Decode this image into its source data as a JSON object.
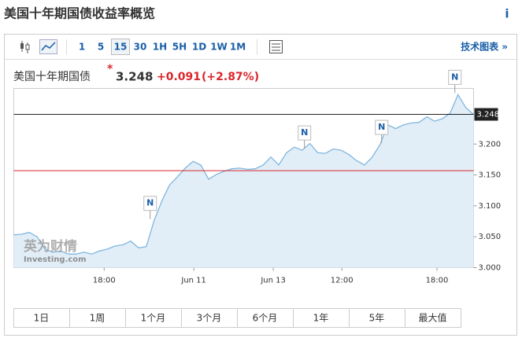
{
  "header": {
    "title": "美国十年期国债收益率概览",
    "info_icon": "i"
  },
  "toolbar": {
    "intervals": [
      "1",
      "5",
      "15",
      "30",
      "1H",
      "5H",
      "1D",
      "1W",
      "1M"
    ],
    "selected_index": 2,
    "link": "技术图表 »"
  },
  "quote": {
    "name": "美国十年期国债",
    "marker": "*",
    "price": "3.248",
    "change": "+0.091",
    "change_percent": "(+2.87%)"
  },
  "watermark": {
    "brand": "英为财情",
    "site": "Investing.com"
  },
  "chart_data": {
    "type": "area",
    "values": [
      3.053,
      3.054,
      3.057,
      3.05,
      3.03,
      3.025,
      3.027,
      3.022,
      3.022,
      3.025,
      3.022,
      3.027,
      3.03,
      3.035,
      3.037,
      3.043,
      3.032,
      3.034,
      3.076,
      3.108,
      3.134,
      3.147,
      3.161,
      3.172,
      3.166,
      3.143,
      3.151,
      3.156,
      3.16,
      3.161,
      3.159,
      3.16,
      3.166,
      3.179,
      3.166,
      3.186,
      3.195,
      3.19,
      3.201,
      3.186,
      3.185,
      3.192,
      3.19,
      3.183,
      3.173,
      3.166,
      3.179,
      3.199,
      3.231,
      3.225,
      3.231,
      3.234,
      3.235,
      3.244,
      3.237,
      3.241,
      3.25,
      3.28,
      3.259,
      3.248
    ],
    "color": "#7fb6de",
    "fill": "#e2eef7",
    "xlim": [
      0,
      59
    ],
    "xticks": [
      {
        "value": 11.6,
        "label": "18:00"
      },
      {
        "value": 23.1,
        "label": "Jun 11"
      },
      {
        "value": 33.3,
        "label": "Jun 13"
      },
      {
        "value": 42.1,
        "label": "12:00"
      },
      {
        "value": 54.3,
        "label": "18:00"
      }
    ],
    "ylim": [
      3.0,
      3.29
    ],
    "yticks": [
      {
        "value": 3.0,
        "label": "3.000"
      },
      {
        "value": 3.05,
        "label": "3.050"
      },
      {
        "value": 3.1,
        "label": "3.100"
      },
      {
        "value": 3.15,
        "label": "3.150"
      },
      {
        "value": 3.2,
        "label": "3.200"
      }
    ],
    "grid": false,
    "last_value": 3.248,
    "last_color": "#222222",
    "previous_close": 3.157,
    "previous_close_color": "#d9262c",
    "news_markers": [
      {
        "label": "N",
        "x": 17.5
      },
      {
        "label": "N",
        "x": 37.3
      },
      {
        "label": "N",
        "x": 47.2
      },
      {
        "label": "N",
        "x": 56.6
      }
    ]
  },
  "ranges": [
    "1日",
    "1周",
    "1个月",
    "3个月",
    "6个月",
    "1年",
    "5年",
    "最大值"
  ]
}
